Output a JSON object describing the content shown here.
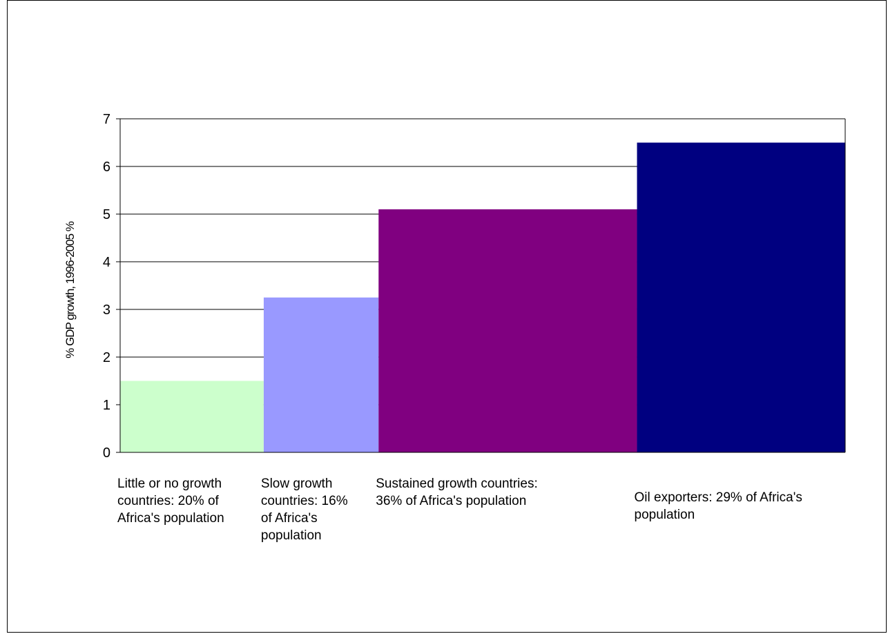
{
  "chart_data": {
    "type": "bar",
    "ylabel": "% GDP growth, 1996-2005 %",
    "ylim": [
      0,
      7
    ],
    "yticks": [
      0,
      1,
      2,
      3,
      4,
      5,
      6,
      7
    ],
    "grid": true,
    "categories": [
      "Little or no growth countries: 20% of Africa's population",
      "Slow growth countries: 16% of Africa's population",
      "Sustained growth countries: 36% of Africa's population",
      "Oil exporters: 29% of Africa's population"
    ],
    "population_share_pct": [
      20,
      16,
      36,
      29
    ],
    "values": [
      1.5,
      3.25,
      5.1,
      6.5
    ],
    "colors": [
      "#ccffcc",
      "#9999ff",
      "#800080",
      "#000080"
    ]
  }
}
